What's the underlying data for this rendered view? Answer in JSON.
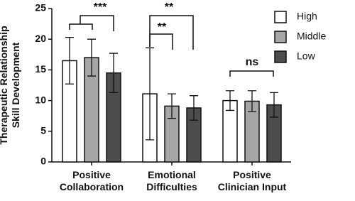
{
  "chart_data": {
    "type": "bar",
    "y_label": [
      "Therapeutic Relationship",
      "Skill Development"
    ],
    "categories": [
      "Positive Collaboration",
      "Emotional Difficulties",
      "Positive Clinician Input"
    ],
    "series": [
      {
        "name": "High",
        "color": "#ffffff",
        "values": [
          16.5,
          11.1,
          10.0
        ],
        "errors": [
          3.8,
          7.5,
          1.6
        ]
      },
      {
        "name": "Middle",
        "color": "#a6a6a6",
        "values": [
          17.0,
          9.1,
          9.9
        ],
        "errors": [
          3.0,
          2.0,
          1.7
        ]
      },
      {
        "name": "Low",
        "color": "#4d4d4d",
        "values": [
          14.5,
          8.8,
          9.3
        ],
        "errors": [
          3.2,
          2.0,
          2.0
        ]
      }
    ],
    "annotations": [
      "***",
      "**",
      "**",
      "ns"
    ],
    "ylim": [
      0,
      25
    ],
    "yticks": [
      0,
      5,
      10,
      15,
      20,
      25
    ],
    "grid": false,
    "legend": "top-right"
  }
}
